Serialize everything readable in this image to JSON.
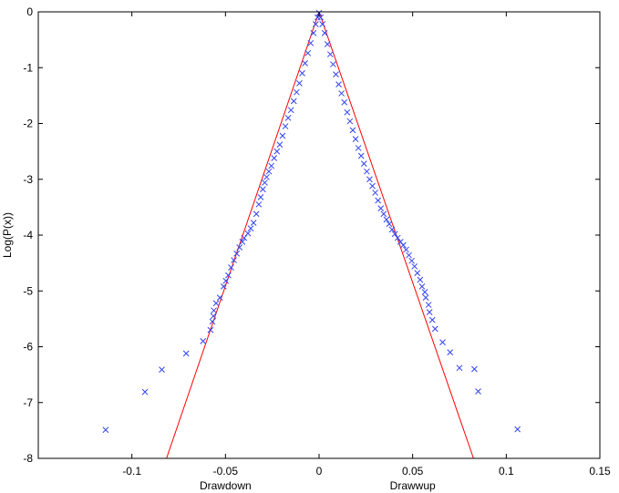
{
  "chart_data": {
    "type": "scatter",
    "title": "",
    "ylabel": "Log(P(x))",
    "xlabels": [
      {
        "text": "Drawdown",
        "x": -0.05
      },
      {
        "text": "Drawwup",
        "x": 0.05
      }
    ],
    "xlim": [
      -0.15,
      0.15
    ],
    "ylim": [
      -8,
      0
    ],
    "xticks": [
      {
        "value": -0.1,
        "label": "-0.1"
      },
      {
        "value": -0.05,
        "label": "-0.05"
      },
      {
        "value": 0,
        "label": "0"
      },
      {
        "value": 0.05,
        "label": "0.05"
      },
      {
        "value": 0.1,
        "label": "0.1"
      },
      {
        "value": 0.15,
        "label": "0.15"
      }
    ],
    "yticks": [
      {
        "value": 0,
        "label": "0"
      },
      {
        "value": -1,
        "label": "-1"
      },
      {
        "value": -2,
        "label": "-2"
      },
      {
        "value": -3,
        "label": "-3"
      },
      {
        "value": -4,
        "label": "-4"
      },
      {
        "value": -5,
        "label": "-5"
      },
      {
        "value": -6,
        "label": "-6"
      },
      {
        "value": -7,
        "label": "-7"
      },
      {
        "value": -8,
        "label": "-8"
      }
    ],
    "grid": false,
    "legend": "none",
    "colors": {
      "markers": "#3344ee",
      "fit": "#ff0000",
      "axes": "#000000"
    },
    "series": [
      {
        "marker": "x",
        "color": "#3344ee",
        "points": [
          [
            -0.114,
            -7.49
          ],
          [
            -0.093,
            -6.81
          ],
          [
            -0.084,
            -6.41
          ],
          [
            -0.071,
            -6.12
          ],
          [
            -0.062,
            -5.9
          ],
          [
            -0.058,
            -5.7
          ],
          [
            -0.057,
            -5.55
          ],
          [
            -0.0565,
            -5.45
          ],
          [
            -0.0562,
            -5.35
          ],
          [
            -0.055,
            -5.22
          ],
          [
            -0.053,
            -5.12
          ],
          [
            -0.051,
            -4.92
          ],
          [
            -0.0498,
            -4.82
          ],
          [
            -0.0485,
            -4.72
          ],
          [
            -0.047,
            -4.58
          ],
          [
            -0.0455,
            -4.45
          ],
          [
            -0.044,
            -4.33
          ],
          [
            -0.0425,
            -4.22
          ],
          [
            -0.041,
            -4.12
          ],
          [
            -0.04,
            -4.05
          ],
          [
            -0.038,
            -3.97
          ],
          [
            -0.0365,
            -3.88
          ],
          [
            -0.035,
            -3.78
          ],
          [
            -0.0335,
            -3.62
          ],
          [
            -0.0322,
            -3.45
          ],
          [
            -0.0312,
            -3.32
          ],
          [
            -0.03,
            -3.18
          ],
          [
            -0.029,
            -3.06
          ],
          [
            -0.028,
            -2.96
          ],
          [
            -0.0268,
            -2.86
          ],
          [
            -0.0255,
            -2.76
          ],
          [
            -0.024,
            -2.62
          ],
          [
            -0.0225,
            -2.5
          ],
          [
            -0.021,
            -2.38
          ],
          [
            -0.0195,
            -2.22
          ],
          [
            -0.018,
            -2.05
          ],
          [
            -0.0165,
            -1.9
          ],
          [
            -0.015,
            -1.76
          ],
          [
            -0.0135,
            -1.6
          ],
          [
            -0.012,
            -1.44
          ],
          [
            -0.0105,
            -1.28
          ],
          [
            -0.009,
            -1.1
          ],
          [
            -0.0075,
            -0.92
          ],
          [
            -0.006,
            -0.74
          ],
          [
            -0.0045,
            -0.56
          ],
          [
            -0.003,
            -0.38
          ],
          [
            -0.0018,
            -0.22
          ],
          [
            -0.0008,
            -0.1
          ],
          [
            0.0,
            -0.02
          ],
          [
            0.0008,
            -0.1
          ],
          [
            0.0018,
            -0.22
          ],
          [
            0.003,
            -0.38
          ],
          [
            0.0045,
            -0.58
          ],
          [
            0.006,
            -0.76
          ],
          [
            0.0075,
            -0.94
          ],
          [
            0.009,
            -1.12
          ],
          [
            0.0105,
            -1.3
          ],
          [
            0.012,
            -1.46
          ],
          [
            0.0135,
            -1.62
          ],
          [
            0.015,
            -1.8
          ],
          [
            0.0165,
            -1.96
          ],
          [
            0.018,
            -2.12
          ],
          [
            0.0195,
            -2.28
          ],
          [
            0.021,
            -2.44
          ],
          [
            0.0225,
            -2.58
          ],
          [
            0.024,
            -2.72
          ],
          [
            0.0255,
            -2.86
          ],
          [
            0.027,
            -3.0
          ],
          [
            0.0285,
            -3.12
          ],
          [
            0.03,
            -3.24
          ],
          [
            0.0315,
            -3.38
          ],
          [
            0.033,
            -3.52
          ],
          [
            0.0345,
            -3.62
          ],
          [
            0.036,
            -3.72
          ],
          [
            0.0375,
            -3.8
          ],
          [
            0.039,
            -3.9
          ],
          [
            0.0405,
            -3.98
          ],
          [
            0.042,
            -4.05
          ],
          [
            0.0435,
            -4.12
          ],
          [
            0.045,
            -4.18
          ],
          [
            0.0465,
            -4.26
          ],
          [
            0.048,
            -4.36
          ],
          [
            0.0495,
            -4.46
          ],
          [
            0.051,
            -4.56
          ],
          [
            0.0525,
            -4.68
          ],
          [
            0.054,
            -4.8
          ],
          [
            0.055,
            -4.92
          ],
          [
            0.0565,
            -5.02
          ],
          [
            0.057,
            -5.12
          ],
          [
            0.0585,
            -5.25
          ],
          [
            0.059,
            -5.38
          ],
          [
            0.0605,
            -5.52
          ],
          [
            0.062,
            -5.68
          ],
          [
            0.066,
            -5.92
          ],
          [
            0.07,
            -6.1
          ],
          [
            0.075,
            -6.38
          ],
          [
            0.083,
            -6.4
          ],
          [
            0.085,
            -6.8
          ],
          [
            0.106,
            -7.48
          ]
        ]
      }
    ],
    "fit_lines": [
      {
        "color": "#ff0000",
        "x": [
          -0.0815,
          0.0
        ],
        "y": [
          -8.0,
          0.0
        ]
      },
      {
        "color": "#ff0000",
        "x": [
          0.0,
          0.0825
        ],
        "y": [
          0.0,
          -8.0
        ]
      }
    ]
  }
}
